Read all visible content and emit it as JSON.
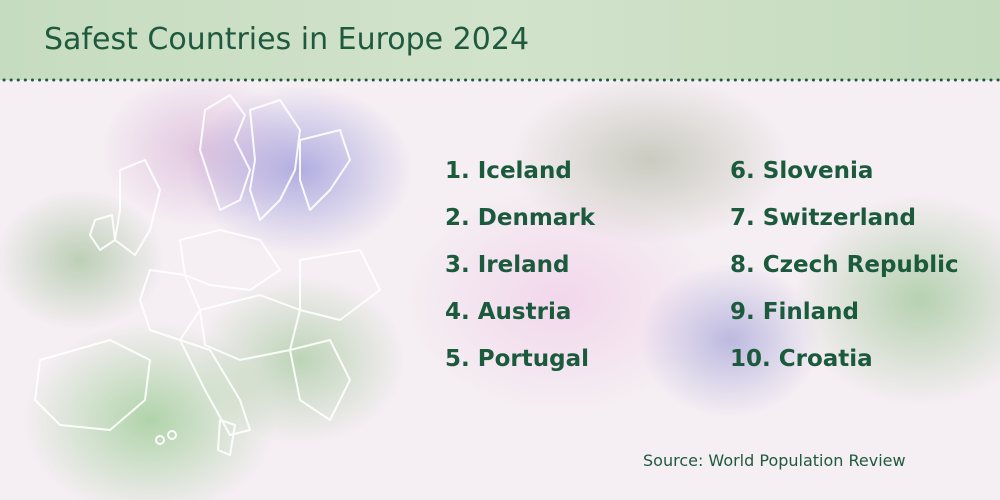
{
  "title": "Safest Countries in Europe 2024",
  "ranking": [
    "1. Iceland",
    "2. Denmark",
    "3. Ireland",
    "4. Austria",
    "5. Portugal",
    "6. Slovenia",
    "7. Switzerland",
    "8. Czech Republic",
    "9. Finland",
    "10. Croatia"
  ],
  "source": "Source: World Population Review"
}
